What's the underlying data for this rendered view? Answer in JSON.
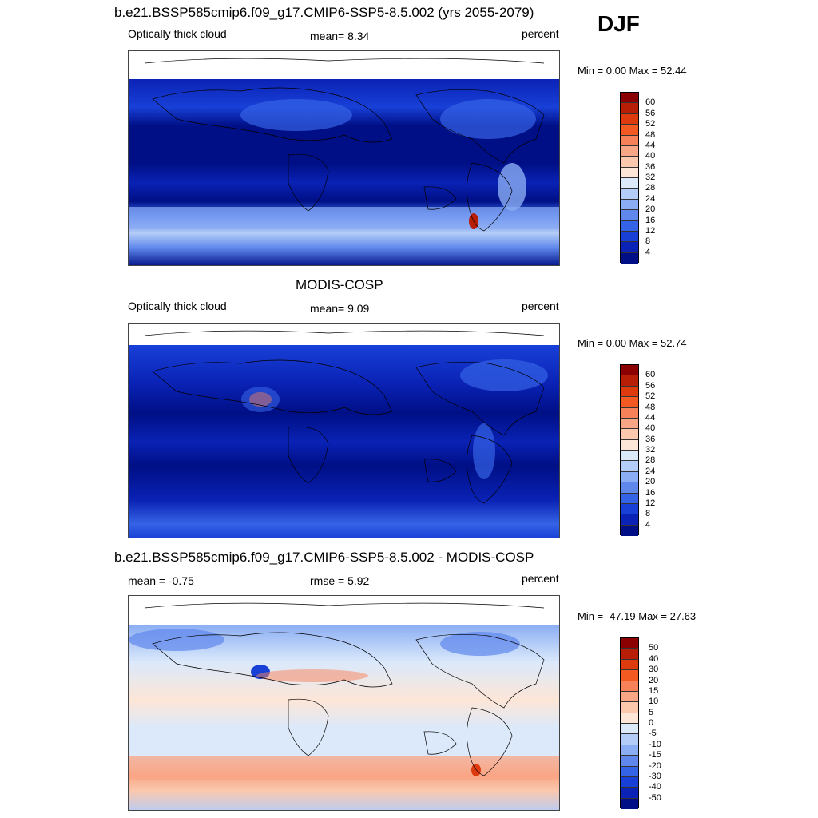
{
  "season": "DJF",
  "panels": [
    {
      "title": "b.e21.BSSP585cmip6.f09_g17.CMIP6-SSP5-8.5.002 (yrs 2055-2079)",
      "left": "Optically thick cloud",
      "center": "mean=   8.34",
      "right": "percent",
      "minmax": "Min =   0.00 Max =  52.44"
    },
    {
      "title": "MODIS-COSP",
      "left": "Optically thick cloud",
      "center": "mean=   9.09",
      "right": "percent",
      "minmax": "Min =   0.00 Max =  52.74"
    },
    {
      "title": "b.e21.BSSP585cmip6.f09_g17.CMIP6-SSP5-8.5.002 - MODIS-COSP",
      "left": "mean =  -0.75",
      "center": "rmse =   5.92",
      "right": "percent",
      "minmax": "Min = -47.19 Max =  27.63"
    }
  ],
  "colorbar_abs": {
    "labels": [
      "60",
      "56",
      "52",
      "48",
      "44",
      "40",
      "36",
      "32",
      "28",
      "24",
      "20",
      "16",
      "12",
      "8",
      "4"
    ],
    "colors": [
      "#8b0000",
      "#b81e06",
      "#dd3a0e",
      "#f25a22",
      "#f7825a",
      "#f9a686",
      "#fbc8ae",
      "#fde6d7",
      "#dbe9fb",
      "#b4cdf8",
      "#8aadf3",
      "#5f87ec",
      "#3563e5",
      "#1840d7",
      "#0a22b5",
      "#000f85"
    ]
  },
  "colorbar_diff": {
    "labels": [
      "50",
      "40",
      "30",
      "20",
      "15",
      "10",
      "5",
      "0",
      "-5",
      "-10",
      "-15",
      "-20",
      "-30",
      "-40",
      "-50"
    ],
    "colors": [
      "#8b0000",
      "#b81e06",
      "#dd3a0e",
      "#f25a22",
      "#f7825a",
      "#f9a686",
      "#fbc8ae",
      "#fde6d7",
      "#dbe9fb",
      "#b4cdf8",
      "#8aadf3",
      "#5f87ec",
      "#3563e5",
      "#1840d7",
      "#0a22b5",
      "#000f85"
    ]
  }
}
